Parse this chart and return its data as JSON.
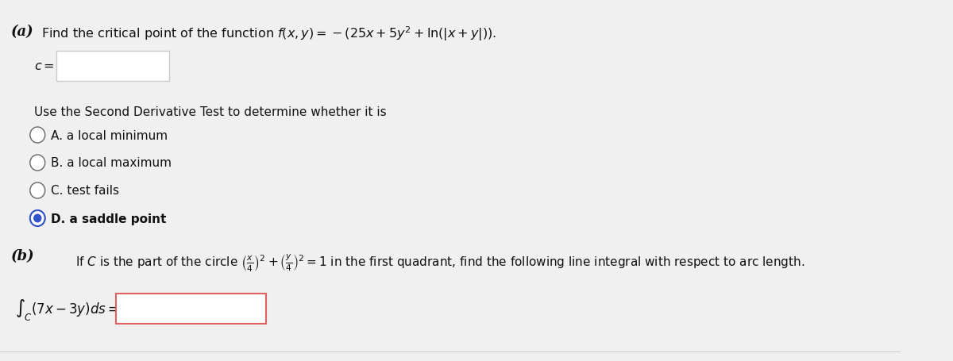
{
  "bg_color": "#f0f0f0",
  "content_bg": "#f0f0f0",
  "title_a": "(a)",
  "title_b": "(b)",
  "part_a_question": "Find the critical point of the function $f(x, y) = -(25x + 5y^2 + \\ln(|x + y|))$.",
  "c_label": "$c =$",
  "use_second_deriv": "Use the Second Derivative Test to determine whether it is",
  "option_A": "A. a local minimum",
  "option_B": "B. a local maximum",
  "option_C": "C. test fails",
  "option_D": "D. a saddle point",
  "selected_option": "D",
  "part_b_question": "If $C$ is the part of the circle $\\left(\\frac{x}{4}\\right)^2 + \\left(\\frac{y}{4}\\right)^2 = 1$ in the first quadrant, find the following line integral with respect to arc length.",
  "integral_label": "$\\int_C (7x - 3y)ds =$",
  "input_box_color": "#ffffff",
  "input_box_border_a": "#cccccc",
  "input_box_border_b": "#e06060",
  "radio_selected_color": "#3355cc",
  "radio_unselected_color": "#ffffff",
  "radio_border_color": "#666666",
  "text_color": "#111111",
  "separator_color": "#cccccc"
}
